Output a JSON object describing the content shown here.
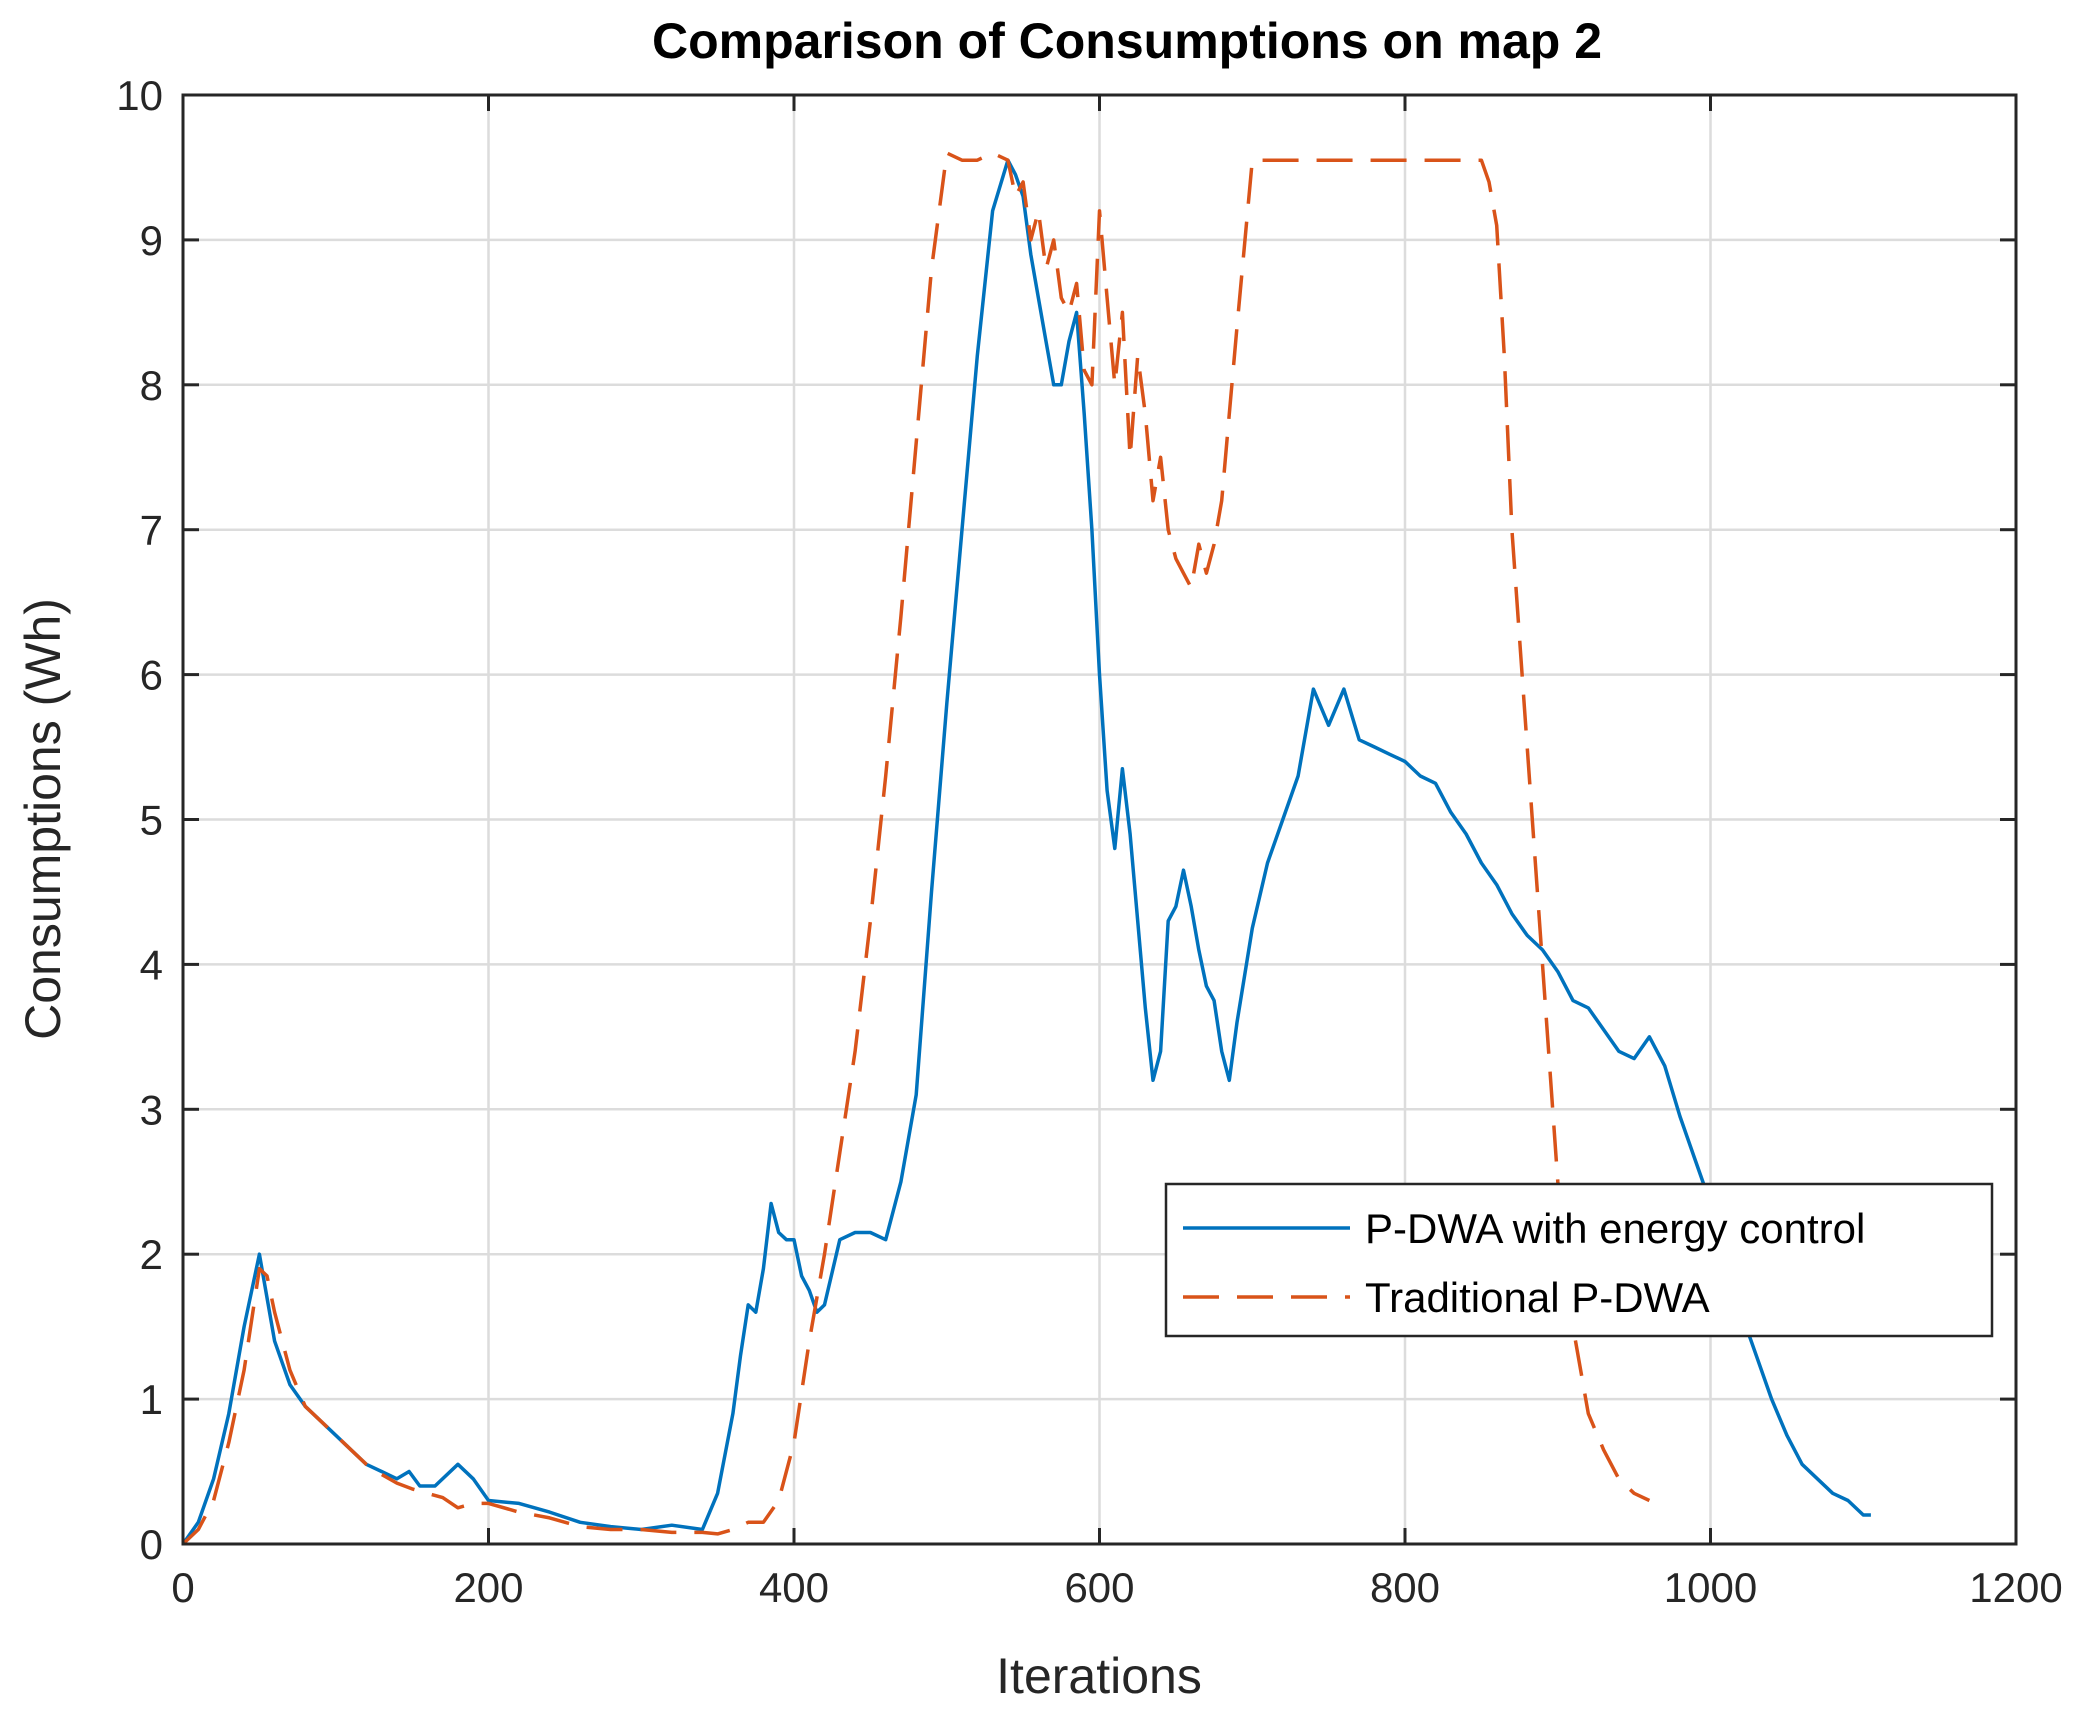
{
  "chart_data": {
    "type": "line",
    "title": "Comparison of Consumptions on map 2",
    "xlabel": "Iterations",
    "ylabel": "Consumptions (Wh)",
    "xlim": [
      0,
      1200
    ],
    "ylim": [
      0,
      10
    ],
    "xticks": [
      0,
      200,
      400,
      600,
      800,
      1000,
      1200
    ],
    "xtick_labels": [
      "0",
      "200",
      "400",
      "600",
      "800",
      "1000",
      "1200"
    ],
    "yticks": [
      0,
      1,
      2,
      3,
      4,
      5,
      6,
      7,
      8,
      9,
      10
    ],
    "ytick_labels": [
      "0",
      "1",
      "2",
      "3",
      "4",
      "5",
      "6",
      "7",
      "8",
      "9",
      "10"
    ],
    "grid": true,
    "legend_position": "right",
    "series": [
      {
        "name": "P-DWA with energy control",
        "color": "#0072BD",
        "style": "solid",
        "x": [
          0,
          10,
          20,
          30,
          40,
          50,
          55,
          60,
          70,
          80,
          90,
          100,
          110,
          120,
          130,
          140,
          148,
          155,
          165,
          180,
          190,
          200,
          220,
          240,
          260,
          280,
          300,
          320,
          340,
          350,
          360,
          365,
          370,
          375,
          380,
          385,
          390,
          395,
          400,
          405,
          410,
          415,
          420,
          430,
          440,
          450,
          460,
          470,
          480,
          490,
          500,
          510,
          520,
          530,
          540,
          545,
          550,
          555,
          560,
          565,
          570,
          575,
          580,
          585,
          590,
          595,
          600,
          605,
          610,
          615,
          620,
          625,
          630,
          635,
          640,
          645,
          650,
          655,
          660,
          665,
          670,
          675,
          680,
          685,
          690,
          700,
          710,
          720,
          730,
          740,
          750,
          760,
          770,
          780,
          790,
          800,
          810,
          820,
          830,
          840,
          850,
          860,
          870,
          880,
          890,
          900,
          910,
          920,
          930,
          940,
          950,
          960,
          970,
          980,
          990,
          1000,
          1010,
          1020,
          1030,
          1040,
          1050,
          1060,
          1070,
          1080,
          1090,
          1100,
          1105
        ],
        "values": [
          0,
          0.15,
          0.45,
          0.9,
          1.5,
          2.0,
          1.7,
          1.4,
          1.1,
          0.95,
          0.85,
          0.75,
          0.65,
          0.55,
          0.5,
          0.45,
          0.5,
          0.4,
          0.4,
          0.55,
          0.45,
          0.3,
          0.28,
          0.22,
          0.15,
          0.12,
          0.1,
          0.13,
          0.1,
          0.35,
          0.9,
          1.3,
          1.65,
          1.6,
          1.9,
          2.35,
          2.15,
          2.1,
          2.1,
          1.85,
          1.75,
          1.6,
          1.65,
          2.1,
          2.15,
          2.15,
          2.1,
          2.5,
          3.1,
          4.5,
          5.8,
          7.0,
          8.2,
          9.2,
          9.55,
          9.45,
          9.3,
          8.9,
          8.6,
          8.3,
          8.0,
          8.0,
          8.3,
          8.5,
          7.8,
          7.0,
          6.0,
          5.2,
          4.8,
          5.35,
          4.9,
          4.3,
          3.7,
          3.2,
          3.4,
          4.3,
          4.4,
          4.65,
          4.4,
          4.1,
          3.85,
          3.75,
          3.4,
          3.2,
          3.6,
          4.25,
          4.7,
          5.0,
          5.3,
          5.9,
          5.65,
          5.9,
          5.55,
          5.5,
          5.45,
          5.4,
          5.3,
          5.25,
          5.05,
          4.9,
          4.7,
          4.55,
          4.35,
          4.2,
          4.1,
          3.95,
          3.75,
          3.7,
          3.55,
          3.4,
          3.35,
          3.5,
          3.3,
          2.95,
          2.65,
          2.35,
          2.0,
          1.6,
          1.3,
          1.0,
          0.75,
          0.55,
          0.45,
          0.35,
          0.3,
          0.2,
          0.2
        ]
      },
      {
        "name": "Traditional P-DWA",
        "color": "#D95319",
        "style": "dashed",
        "x": [
          0,
          10,
          20,
          30,
          40,
          50,
          55,
          60,
          70,
          80,
          90,
          100,
          110,
          120,
          130,
          140,
          150,
          160,
          170,
          180,
          190,
          200,
          220,
          240,
          260,
          280,
          300,
          320,
          340,
          350,
          360,
          370,
          380,
          390,
          400,
          410,
          420,
          430,
          440,
          450,
          460,
          470,
          480,
          490,
          500,
          510,
          520,
          530,
          540,
          545,
          550,
          555,
          560,
          565,
          570,
          575,
          580,
          585,
          590,
          595,
          600,
          605,
          610,
          615,
          620,
          625,
          630,
          635,
          640,
          645,
          650,
          655,
          660,
          665,
          670,
          675,
          680,
          685,
          690,
          700,
          720,
          740,
          760,
          780,
          800,
          820,
          840,
          850,
          855,
          860,
          865,
          870,
          880,
          890,
          900,
          910,
          920,
          930,
          940,
          950,
          960
        ],
        "values": [
          0,
          0.1,
          0.3,
          0.7,
          1.2,
          1.9,
          1.85,
          1.6,
          1.2,
          0.95,
          0.85,
          0.75,
          0.65,
          0.55,
          0.48,
          0.42,
          0.38,
          0.35,
          0.32,
          0.25,
          0.28,
          0.28,
          0.22,
          0.18,
          0.12,
          0.1,
          0.1,
          0.08,
          0.08,
          0.07,
          0.1,
          0.15,
          0.15,
          0.3,
          0.7,
          1.4,
          2.0,
          2.7,
          3.4,
          4.3,
          5.3,
          6.4,
          7.6,
          8.8,
          9.6,
          9.55,
          9.55,
          9.6,
          9.55,
          9.3,
          9.4,
          9.0,
          9.2,
          8.8,
          9.0,
          8.6,
          8.5,
          8.7,
          8.1,
          8.0,
          9.2,
          8.6,
          8.0,
          8.5,
          7.5,
          8.2,
          7.8,
          7.2,
          7.5,
          7.0,
          6.8,
          6.7,
          6.6,
          6.9,
          6.7,
          6.9,
          7.2,
          7.8,
          8.4,
          9.55,
          9.55,
          9.55,
          9.55,
          9.55,
          9.55,
          9.55,
          9.55,
          9.55,
          9.4,
          9.1,
          8.2,
          7.0,
          5.5,
          4.0,
          2.5,
          1.5,
          0.9,
          0.65,
          0.45,
          0.35,
          0.3
        ]
      }
    ]
  }
}
